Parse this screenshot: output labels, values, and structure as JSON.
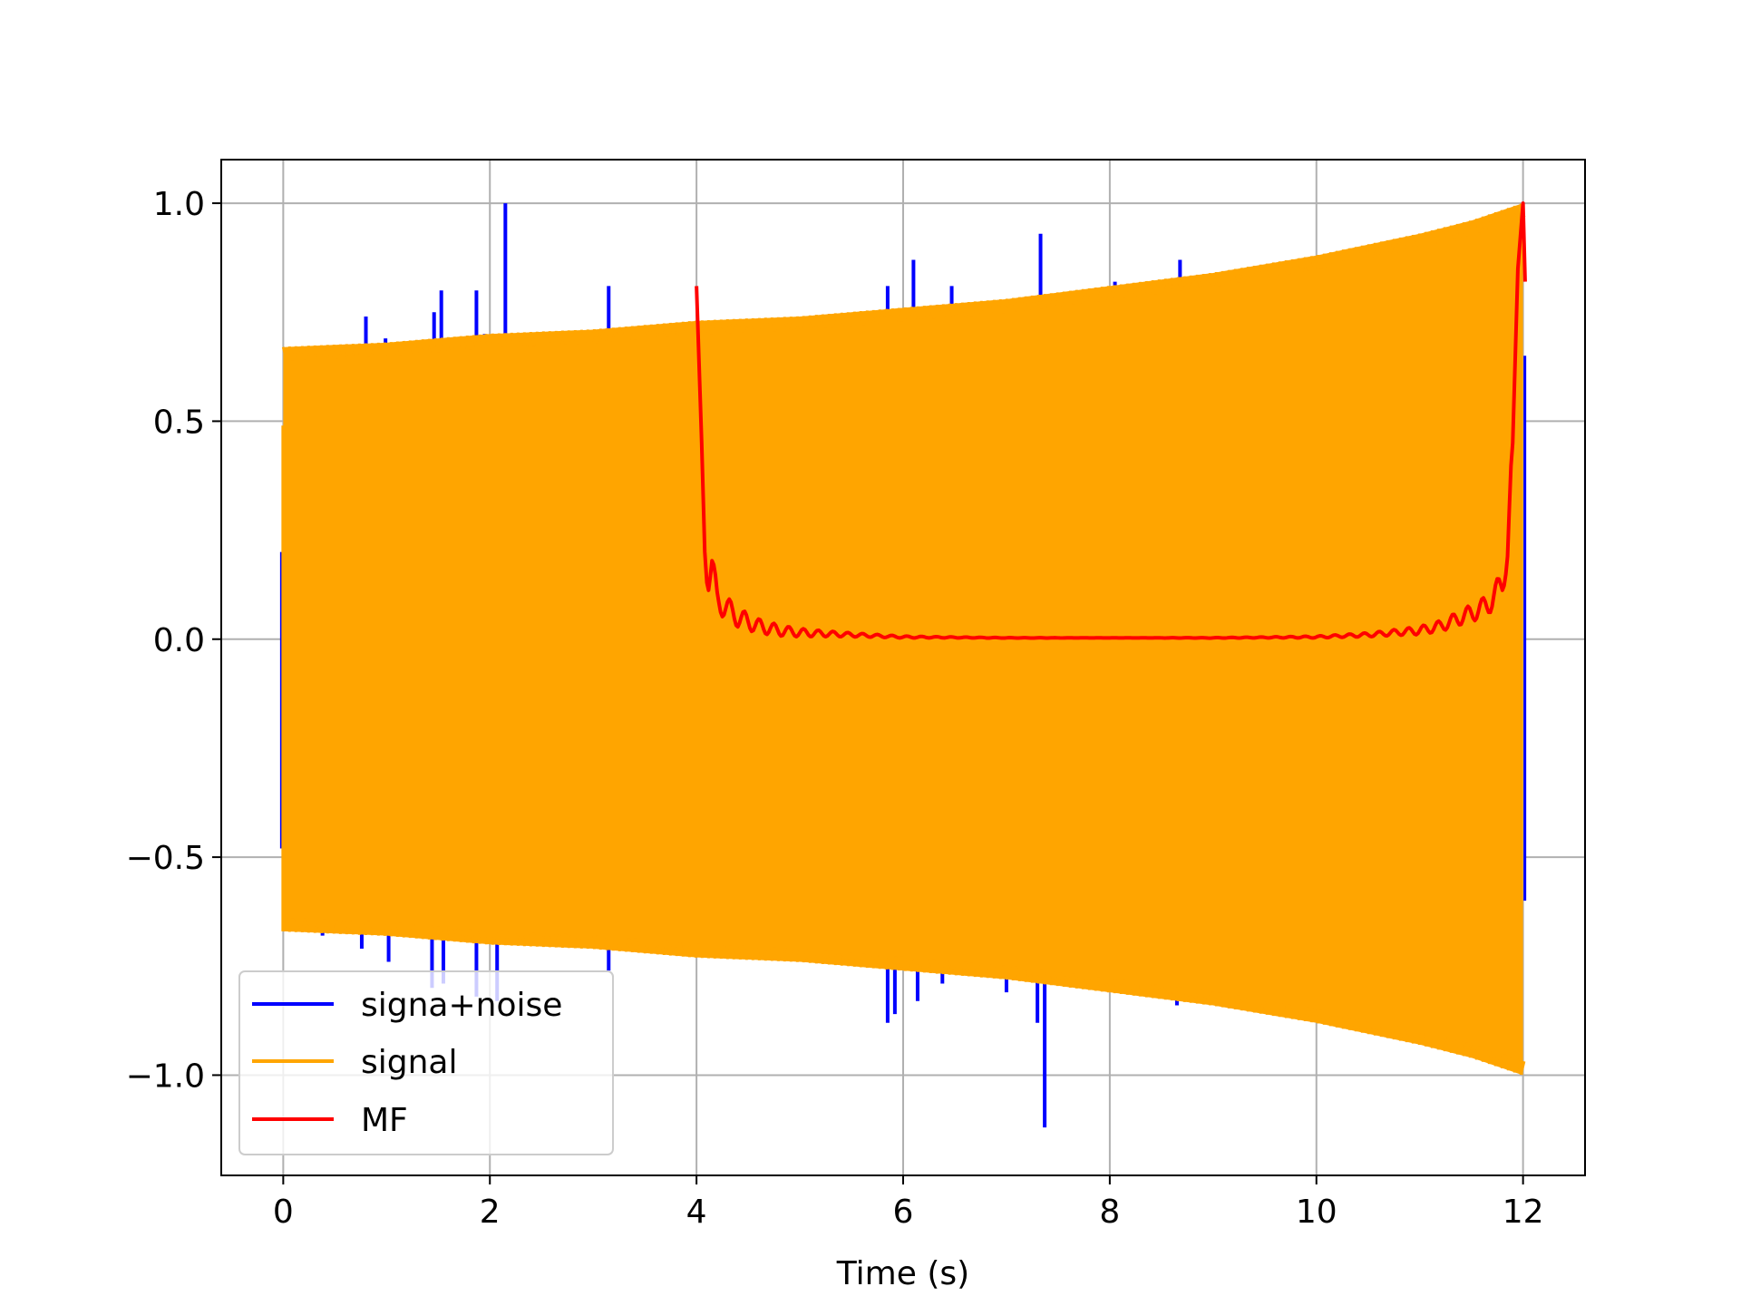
{
  "chart_data": {
    "type": "line",
    "title": "",
    "xlabel": "Time (s)",
    "ylabel": "",
    "xlim": [
      -0.6,
      12.6
    ],
    "ylim": [
      -1.23,
      1.1
    ],
    "xticks": [
      0,
      2,
      4,
      6,
      8,
      10,
      12
    ],
    "xtick_labels": [
      "0",
      "2",
      "4",
      "6",
      "8",
      "10",
      "12"
    ],
    "yticks": [
      1.0,
      0.5,
      0.0,
      -0.5,
      -1.0
    ],
    "ytick_labels": [
      "1.0",
      "0.5",
      "0.0",
      "−0.5",
      "−1.0"
    ],
    "grid": true,
    "legend_position": "lower-left",
    "series": [
      {
        "name": "signa+noise",
        "color": "#0000ff",
        "x_range": [
          0,
          12
        ],
        "note": "signal plus impulsive noise spikes",
        "spikes": [
          [
            0.8,
            0.74
          ],
          [
            0.99,
            0.69
          ],
          [
            1.46,
            0.75
          ],
          [
            1.53,
            0.8
          ],
          [
            1.87,
            0.8
          ],
          [
            1.95,
            0.7
          ],
          [
            2.15,
            1.0
          ],
          [
            3.15,
            0.81
          ],
          [
            5.85,
            0.81
          ],
          [
            6.1,
            0.87
          ],
          [
            6.47,
            0.81
          ],
          [
            7.33,
            0.93
          ],
          [
            8.05,
            0.82
          ],
          [
            8.68,
            0.87
          ],
          [
            0.38,
            -0.68
          ],
          [
            0.76,
            -0.71
          ],
          [
            1.02,
            -0.74
          ],
          [
            1.44,
            -0.8
          ],
          [
            1.55,
            -0.79
          ],
          [
            1.87,
            -0.82
          ],
          [
            2.07,
            -0.83
          ],
          [
            3.15,
            -0.76
          ],
          [
            5.85,
            -0.88
          ],
          [
            5.92,
            -0.86
          ],
          [
            6.14,
            -0.83
          ],
          [
            6.38,
            -0.79
          ],
          [
            7.0,
            -0.81
          ],
          [
            7.3,
            -0.88
          ],
          [
            7.37,
            -1.12
          ],
          [
            8.65,
            -0.84
          ]
        ]
      },
      {
        "name": "signal",
        "color": "#ffa500",
        "x_range": [
          0,
          12
        ],
        "envelope": {
          "x": [
            0,
            1,
            2,
            3,
            4,
            5,
            6,
            7,
            8,
            9,
            10,
            11,
            11.5,
            12
          ],
          "y": [
            0.67,
            0.68,
            0.7,
            0.71,
            0.73,
            0.74,
            0.76,
            0.78,
            0.81,
            0.84,
            0.88,
            0.93,
            0.96,
            1.0
          ]
        }
      },
      {
        "name": "MF",
        "color": "#ff0000",
        "x": [
          4.0,
          4.05,
          4.08,
          4.1,
          4.15,
          4.2,
          4.3,
          4.4,
          4.6,
          4.8,
          5.0,
          5.5,
          6.0,
          7.0,
          8.0,
          9.0,
          10.0,
          10.5,
          11.0,
          11.2,
          11.4,
          11.6,
          11.7,
          11.8,
          11.85,
          11.9,
          11.95,
          12.0,
          12.02
        ],
        "y": [
          0.81,
          0.45,
          0.2,
          0.13,
          0.17,
          0.09,
          0.07,
          0.05,
          0.03,
          0.02,
          0.015,
          0.01,
          0.005,
          0.003,
          0.003,
          0.003,
          0.005,
          0.01,
          0.02,
          0.03,
          0.05,
          0.07,
          0.09,
          0.13,
          0.2,
          0.45,
          0.85,
          1.0,
          0.82
        ]
      }
    ]
  }
}
